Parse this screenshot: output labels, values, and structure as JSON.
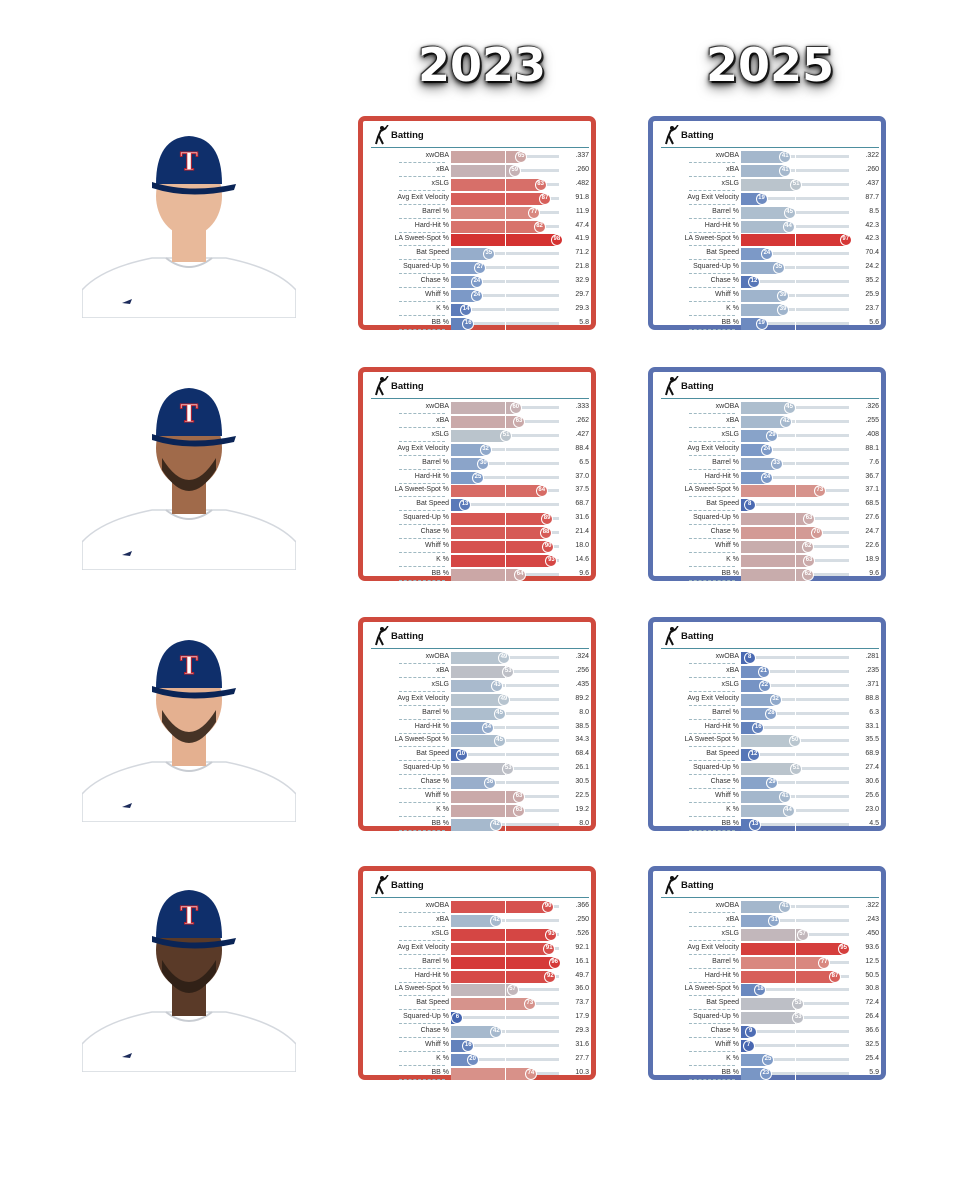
{
  "years": [
    "2023",
    "2025"
  ],
  "card_title": "Batting",
  "metric_labels": [
    "xwOBA",
    "xBA",
    "xSLG",
    "Avg Exit Velocity",
    "Barrel %",
    "Hard-Hit %",
    "LA Sweet-Spot %",
    "Bat Speed",
    "Squared-Up %",
    "Chase %",
    "Whiff %",
    "K %",
    "BB %"
  ],
  "colors": {
    "border_2023": "#cf4a3e",
    "border_2025": "#5a71b0",
    "accent_line": "#4d8e9e"
  },
  "players": [
    {
      "photo_icon": "player-photo-icon"
    },
    {
      "photo_icon": "player-photo-icon"
    },
    {
      "photo_icon": "player-photo-icon"
    },
    {
      "photo_icon": "player-photo-icon"
    }
  ],
  "chart_data": [
    {
      "type": "bar",
      "player_index": 0,
      "season": "2023",
      "percentiles": [
        65,
        59,
        83,
        87,
        77,
        82,
        98,
        35,
        27,
        24,
        24,
        14,
        16
      ],
      "values": [
        ".337",
        ".260",
        ".482",
        "91.8",
        "11.9",
        "47.4",
        "41.9",
        "71.2",
        "21.8",
        "32.9",
        "29.7",
        "29.3",
        "5.8"
      ]
    },
    {
      "type": "bar",
      "player_index": 0,
      "season": "2025",
      "percentiles": [
        41,
        41,
        51,
        19,
        45,
        44,
        97,
        24,
        35,
        12,
        39,
        39,
        19
      ],
      "values": [
        ".322",
        ".260",
        ".437",
        "87.7",
        "8.5",
        "42.3",
        "42.3",
        "70.4",
        "24.2",
        "35.2",
        "25.9",
        "23.7",
        "5.6"
      ]
    },
    {
      "type": "bar",
      "player_index": 1,
      "season": "2023",
      "percentiles": [
        60,
        63,
        51,
        32,
        30,
        25,
        84,
        13,
        89,
        88,
        90,
        93,
        64
      ],
      "values": [
        ".333",
        ".262",
        ".427",
        "88.4",
        "6.5",
        "37.0",
        "37.5",
        "68.7",
        "31.6",
        "21.4",
        "18.0",
        "14.6",
        "9.6"
      ]
    },
    {
      "type": "bar",
      "player_index": 1,
      "season": "2025",
      "percentiles": [
        45,
        42,
        29,
        24,
        33,
        24,
        73,
        8,
        63,
        70,
        62,
        63,
        62
      ],
      "values": [
        ".326",
        ".255",
        ".408",
        "88.1",
        "7.6",
        "36.7",
        "37.1",
        "68.5",
        "27.6",
        "24.7",
        "22.6",
        "18.9",
        "9.6"
      ]
    },
    {
      "type": "bar",
      "player_index": 2,
      "season": "2023",
      "percentiles": [
        49,
        53,
        43,
        49,
        45,
        34,
        45,
        10,
        53,
        36,
        63,
        63,
        42
      ],
      "values": [
        ".324",
        ".256",
        ".435",
        "89.2",
        "8.0",
        "38.5",
        "34.3",
        "68.4",
        "26.1",
        "30.5",
        "22.5",
        "19.2",
        "8.0"
      ]
    },
    {
      "type": "bar",
      "player_index": 2,
      "season": "2025",
      "percentiles": [
        8,
        21,
        22,
        32,
        28,
        16,
        50,
        12,
        51,
        29,
        41,
        44,
        13
      ],
      "values": [
        ".281",
        ".235",
        ".371",
        "88.8",
        "6.3",
        "33.1",
        "35.5",
        "68.9",
        "27.4",
        "30.6",
        "25.6",
        "23.0",
        "4.5"
      ]
    },
    {
      "type": "bar",
      "player_index": 3,
      "season": "2023",
      "percentiles": [
        90,
        42,
        93,
        91,
        96,
        92,
        57,
        73,
        6,
        42,
        16,
        20,
        74
      ],
      "values": [
        ".366",
        ".250",
        ".526",
        "92.1",
        "16.1",
        "49.7",
        "36.0",
        "73.7",
        "17.9",
        "29.3",
        "31.6",
        "27.7",
        "10.3"
      ]
    },
    {
      "type": "bar",
      "player_index": 3,
      "season": "2025",
      "percentiles": [
        41,
        31,
        57,
        95,
        77,
        87,
        18,
        53,
        53,
        9,
        7,
        25,
        23
      ],
      "values": [
        ".322",
        ".243",
        ".450",
        "93.6",
        "12.5",
        "50.5",
        "30.8",
        "72.4",
        "26.4",
        "36.6",
        "32.5",
        "25.4",
        "5.9"
      ]
    }
  ]
}
